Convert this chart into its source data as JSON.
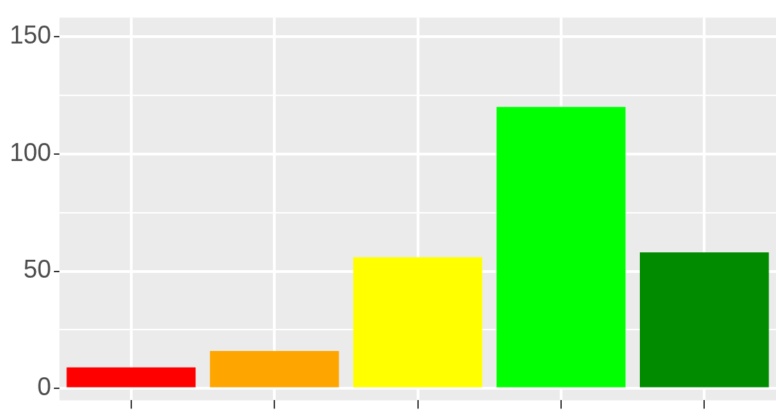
{
  "chart_data": {
    "type": "bar",
    "categories": [
      null,
      null,
      null,
      null,
      null
    ],
    "values": [
      9,
      16,
      56,
      120,
      58
    ],
    "colors": [
      "#ff0000",
      "#ffa500",
      "#ffff00",
      "#00ff00",
      "#008b00"
    ],
    "ylim": [
      -5,
      158
    ],
    "yticks": [
      0,
      {
        "value": 25,
        "label": null
      },
      50,
      {
        "value": 75,
        "label": null
      },
      100,
      {
        "value": 125,
        "label": null
      },
      150
    ],
    "grid": true,
    "tick_labels": "y"
  }
}
